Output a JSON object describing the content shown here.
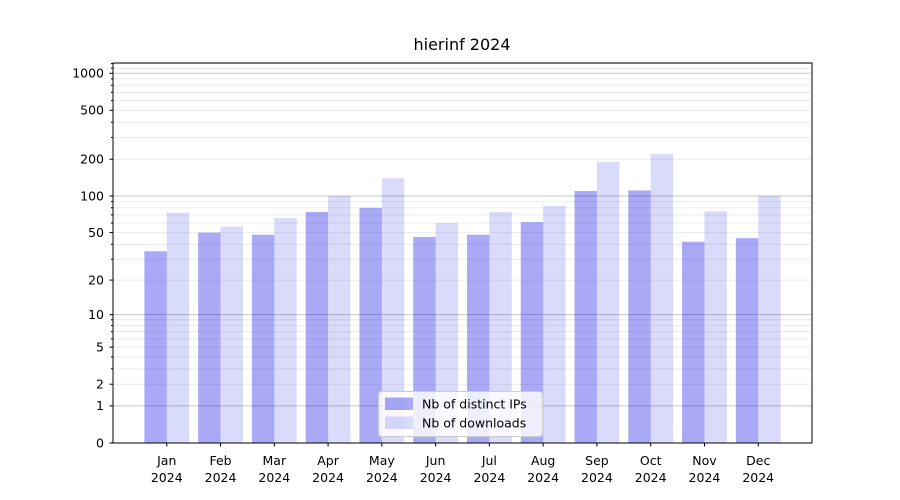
{
  "title": "hierinf 2024",
  "chart_data": {
    "type": "bar",
    "title": "hierinf 2024",
    "categories": {
      "months": [
        "Jan",
        "Feb",
        "Mar",
        "Apr",
        "May",
        "Jun",
        "Jul",
        "Aug",
        "Sep",
        "Oct",
        "Nov",
        "Dec"
      ],
      "year": "2024"
    },
    "series": [
      {
        "name": "Nb of distinct IPs",
        "color": "rgba(10,10,230,0.35)",
        "values": [
          35,
          50,
          48,
          74,
          80,
          46,
          48,
          61,
          110,
          111,
          42,
          45
        ]
      },
      {
        "name": "Nb of downloads",
        "color": "rgba(10,10,230,0.15)",
        "values": [
          73,
          56,
          66,
          100,
          140,
          60,
          74,
          83,
          190,
          220,
          75,
          100
        ]
      }
    ],
    "yscale": "log10(v+1)",
    "yticks": [
      0,
      1,
      2,
      5,
      10,
      20,
      50,
      100,
      200,
      500,
      1000
    ],
    "ylim": [
      0,
      1200
    ],
    "grid": true,
    "legend": {
      "position": "bottom-center",
      "labels": [
        "Nb of distinct IPs",
        "Nb of downloads"
      ]
    },
    "colors": {
      "grid_major": "#c6c6c6",
      "grid_minor": "#ececec",
      "axis": "#000000",
      "text": "#000000",
      "legend_border": "#cccccc",
      "legend_bg": "rgba(255,255,255,0.8)"
    }
  }
}
